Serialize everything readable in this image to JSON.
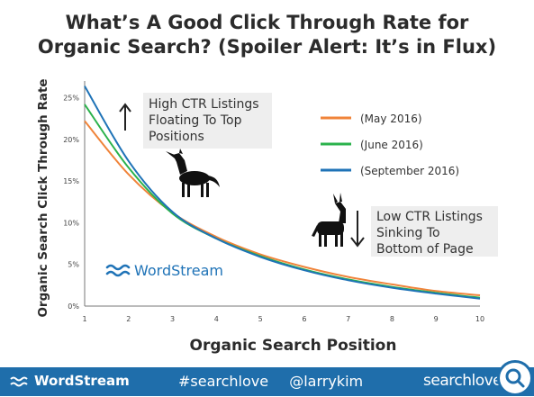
{
  "title": {
    "line1": "What’s A Good Click Through Rate for",
    "line2": "Organic Search? (Spoiler Alert: It’s in Flux)"
  },
  "footer": {
    "brand": "WordStream",
    "hashtag": "#searchlove",
    "handle": "@larrykim",
    "logo_text": "searchlove"
  },
  "chart_data": {
    "type": "line",
    "xlabel": "Organic Search Position",
    "ylabel": "Organic Search Click Through Rate",
    "x": [
      1,
      2,
      3,
      4,
      5,
      6,
      7,
      8,
      9,
      10
    ],
    "xlim": [
      1,
      10
    ],
    "ylim": [
      0,
      27
    ],
    "yticks": [
      0,
      5,
      10,
      15,
      20,
      25
    ],
    "ytick_labels": [
      "0%",
      "5%",
      "10%",
      "15%",
      "20%",
      "25%"
    ],
    "xtick_labels": [
      "1",
      "2",
      "3",
      "4",
      "5",
      "6",
      "7",
      "8",
      "9",
      "10"
    ],
    "grid": false,
    "legend_position": "top-right",
    "series": [
      {
        "name": "(May 2016)",
        "color": "#f0843a",
        "values": [
          22.2,
          15.8,
          11.2,
          8.3,
          6.2,
          4.7,
          3.5,
          2.6,
          1.8,
          1.3
        ]
      },
      {
        "name": "(June 2016)",
        "color": "#2bb24c",
        "values": [
          24.2,
          16.6,
          11.1,
          8.1,
          6.0,
          4.4,
          3.2,
          2.3,
          1.6,
          1.0
        ]
      },
      {
        "name": "(September 2016)",
        "color": "#1f73b7",
        "values": [
          26.4,
          17.4,
          11.3,
          8.1,
          5.9,
          4.3,
          3.1,
          2.2,
          1.5,
          0.9
        ]
      }
    ],
    "annotations": {
      "high": [
        "High CTR Listings",
        "Floating To Top",
        "Positions"
      ],
      "low": [
        "Low CTR Listings",
        "Sinking To",
        "Bottom of Page"
      ],
      "watermark": "WordStream"
    }
  }
}
